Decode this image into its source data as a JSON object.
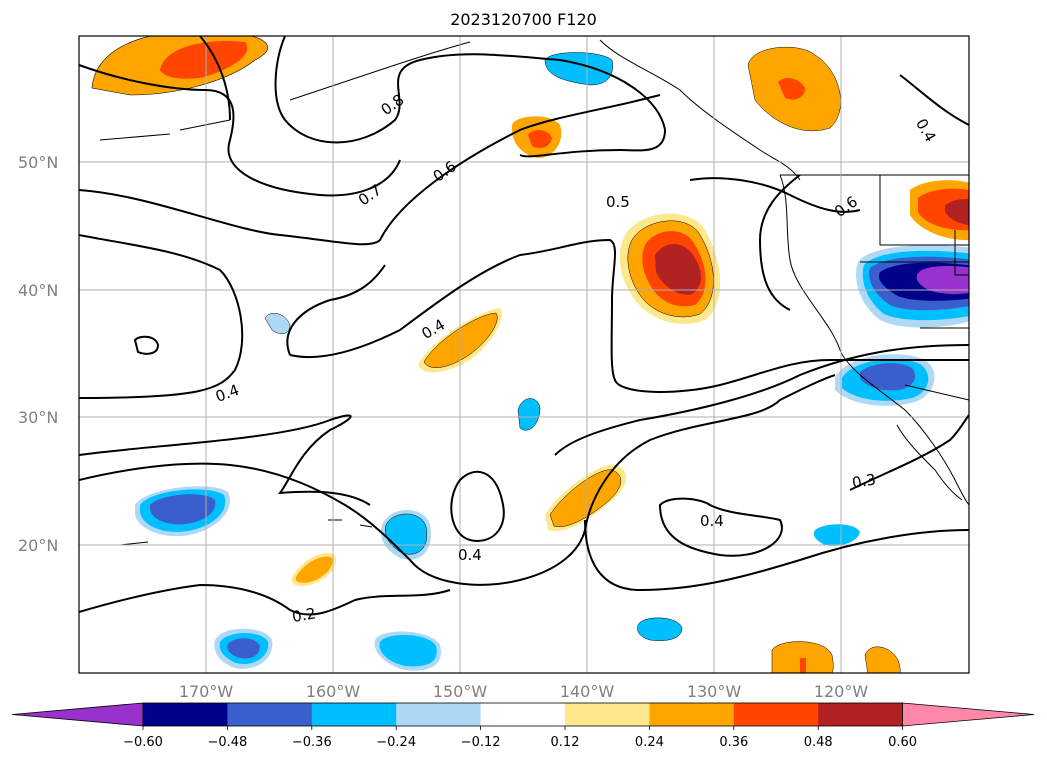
{
  "title": "2023120700 F120",
  "map": {
    "lat_labels": [
      "50°N",
      "40°N",
      "30°N",
      "20°N"
    ],
    "lon_labels": [
      "170°W",
      "160°W",
      "150°W",
      "140°W",
      "130°W",
      "120°W"
    ],
    "contour_labels": [
      "0.8",
      "0.7",
      "0.6",
      "0.5",
      "0.6",
      "0.4",
      "0.4",
      "0.4",
      "0.4",
      "0.3",
      "0.2",
      "0.4"
    ],
    "grid": true
  },
  "colorbar": {
    "colors": [
      "#9932cc",
      "#00008b",
      "#3a5fcd",
      "#00bfff",
      "#add8f6",
      "#ffffff",
      "#ffe88c",
      "#ffa500",
      "#ff4500",
      "#b22222",
      "#ff88aa"
    ],
    "tick_labels": [
      "−0.60",
      "−0.48",
      "−0.36",
      "−0.24",
      "−0.12",
      "0.12",
      "0.24",
      "0.36",
      "0.48",
      "0.60"
    ]
  }
}
